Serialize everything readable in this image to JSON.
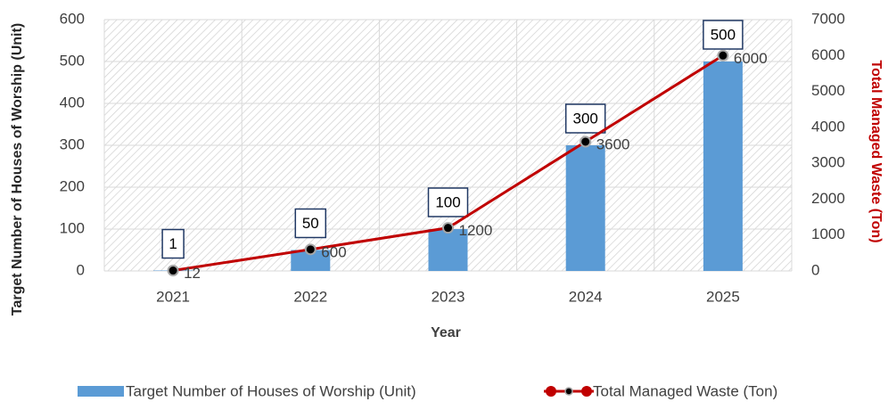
{
  "chart_data": {
    "type": "bar",
    "x_label": "Year",
    "y_label": "Target Number of Houses of Worship (Unit)",
    "y2_label": "Total Managed Waste (Ton)",
    "categories": [
      "2021",
      "2022",
      "2023",
      "2024",
      "2025"
    ],
    "series": [
      {
        "name": "Target Number of Houses of Worship (Unit)",
        "type": "bar",
        "color": "#5b9bd5",
        "values": [
          1,
          50,
          100,
          300,
          500
        ]
      },
      {
        "name": "Total Managed Waste (Ton)",
        "type": "line",
        "axis": "y2",
        "color": "#c00000",
        "values": [
          12,
          600,
          1200,
          3600,
          6000
        ]
      }
    ],
    "ylim": [
      0,
      600
    ],
    "yticks": [
      0,
      100,
      200,
      300,
      400,
      500,
      600
    ],
    "y2lim": [
      0,
      7000
    ],
    "y2ticks": [
      0,
      1000,
      2000,
      3000,
      4000,
      5000,
      6000,
      7000
    ],
    "grid": true,
    "legend": "bottom"
  }
}
